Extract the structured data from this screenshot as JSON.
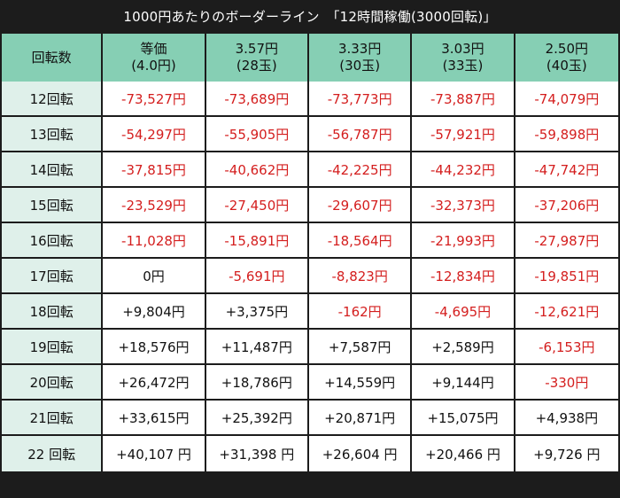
{
  "title": "1000円あたりのボーダーライン　「12時間稼働(3000回転)」",
  "columns": [
    {
      "line1": "回転数",
      "line2": ""
    },
    {
      "line1": "等価",
      "line2": "(4.0円)"
    },
    {
      "line1": "3.57円",
      "line2": "(28玉)"
    },
    {
      "line1": "3.33円",
      "line2": "(30玉)"
    },
    {
      "line1": "3.03円",
      "line2": "(33玉)"
    },
    {
      "line1": "2.50円",
      "line2": "(40玉)"
    }
  ],
  "rows": [
    {
      "label": "12回転",
      "cells": [
        "-73,527円",
        "-73,689円",
        "-73,773円",
        "-73,887円",
        "-74,079円"
      ],
      "sign": [
        "neg",
        "neg",
        "neg",
        "neg",
        "neg"
      ]
    },
    {
      "label": "13回転",
      "cells": [
        "-54,297円",
        "-55,905円",
        "-56,787円",
        "-57,921円",
        "-59,898円"
      ],
      "sign": [
        "neg",
        "neg",
        "neg",
        "neg",
        "neg"
      ]
    },
    {
      "label": "14回転",
      "cells": [
        "-37,815円",
        "-40,662円",
        "-42,225円",
        "-44,232円",
        "-47,742円"
      ],
      "sign": [
        "neg",
        "neg",
        "neg",
        "neg",
        "neg"
      ]
    },
    {
      "label": "15回転",
      "cells": [
        "-23,529円",
        "-27,450円",
        "-29,607円",
        "-32,373円",
        "-37,206円"
      ],
      "sign": [
        "neg",
        "neg",
        "neg",
        "neg",
        "neg"
      ]
    },
    {
      "label": "16回転",
      "cells": [
        "-11,028円",
        "-15,891円",
        "-18,564円",
        "-21,993円",
        "-27,987円"
      ],
      "sign": [
        "neg",
        "neg",
        "neg",
        "neg",
        "neg"
      ]
    },
    {
      "label": "17回転",
      "cells": [
        "0円",
        "-5,691円",
        "-8,823円",
        "-12,834円",
        "-19,851円"
      ],
      "sign": [
        "pos",
        "neg",
        "neg",
        "neg",
        "neg"
      ]
    },
    {
      "label": "18回転",
      "cells": [
        "+9,804円",
        "+3,375円",
        "-162円",
        "-4,695円",
        "-12,621円"
      ],
      "sign": [
        "pos",
        "pos",
        "neg",
        "neg",
        "neg"
      ]
    },
    {
      "label": "19回転",
      "cells": [
        "+18,576円",
        "+11,487円",
        "+7,587円",
        "+2,589円",
        "-6,153円"
      ],
      "sign": [
        "pos",
        "pos",
        "pos",
        "pos",
        "neg"
      ]
    },
    {
      "label": "20回転",
      "cells": [
        "+26,472円",
        "+18,786円",
        "+14,559円",
        "+9,144円",
        "-330円"
      ],
      "sign": [
        "pos",
        "pos",
        "pos",
        "pos",
        "neg"
      ]
    },
    {
      "label": "21回転",
      "cells": [
        "+33,615円",
        "+25,392円",
        "+20,871円",
        "+15,075円",
        "+4,938円"
      ],
      "sign": [
        "pos",
        "pos",
        "pos",
        "pos",
        "pos"
      ]
    },
    {
      "label": "22 回転",
      "cells": [
        "+40,107 円",
        "+31,398 円",
        "+26,604 円",
        "+20,466 円",
        "+9,726 円"
      ],
      "sign": [
        "pos",
        "pos",
        "pos",
        "pos",
        "pos"
      ]
    }
  ],
  "colors": {
    "header": "#86cfb4",
    "row_header": "#dff0ea",
    "negative": "#d41e1e",
    "border": "#1c1c1c"
  }
}
